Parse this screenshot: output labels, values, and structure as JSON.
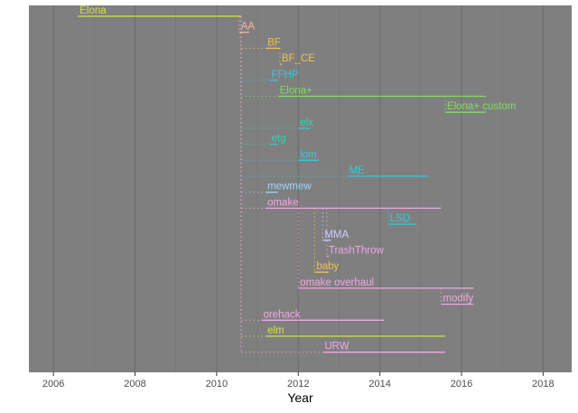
{
  "chart_data": {
    "type": "timeline",
    "xlabel": "Year",
    "xlim": [
      2005.4,
      2018.7
    ],
    "x_ticks": [
      2006,
      2008,
      2010,
      2012,
      2014,
      2016,
      2018
    ],
    "x_tick_labels": [
      "2006",
      "2008",
      "2010",
      "2012",
      "2014",
      "2016",
      "2018"
    ],
    "grid": true,
    "panel_background": "#7f7f7f",
    "series": [
      {
        "name": "Elona",
        "start": 2006.6,
        "end": 2010.6,
        "parent": null,
        "color": "#d4e34a"
      },
      {
        "name": "AA",
        "start": 2010.55,
        "end": 2010.8,
        "parent": "Elona",
        "color": "#fbb4a0"
      },
      {
        "name": "BF",
        "start": 2011.2,
        "end": 2011.55,
        "parent": "Elona",
        "color": "#f2c14e"
      },
      {
        "name": "BF_CE",
        "start": 2011.55,
        "end": 2011.6,
        "parent": "BF",
        "color": "#f2c14e"
      },
      {
        "name": "FFHP",
        "start": 2011.3,
        "end": 2011.5,
        "parent": "Elona",
        "color": "#35c8e0"
      },
      {
        "name": "Elona+",
        "start": 2011.5,
        "end": 2016.6,
        "parent": "Elona",
        "color": "#7be05a"
      },
      {
        "name": "Elona+ custom",
        "start": 2015.6,
        "end": 2016.6,
        "parent": "Elona+",
        "color": "#7be05a"
      },
      {
        "name": "elx",
        "start": 2012.0,
        "end": 2012.3,
        "parent": "Elona",
        "color": "#2ed6b8"
      },
      {
        "name": "etg",
        "start": 2011.3,
        "end": 2011.5,
        "parent": "Elona",
        "color": "#2ed6b8"
      },
      {
        "name": "lom",
        "start": 2012.0,
        "end": 2012.5,
        "parent": "Elona",
        "color": "#35c8e0"
      },
      {
        "name": "ME",
        "start": 2013.2,
        "end": 2015.2,
        "parent": "Elona",
        "color": "#35c8e0"
      },
      {
        "name": "mewmew",
        "start": 2011.2,
        "end": 2011.5,
        "parent": "Elona",
        "color": "#9ad8ff"
      },
      {
        "name": "omake",
        "start": 2011.2,
        "end": 2015.5,
        "parent": "Elona",
        "color": "#f4a6e8"
      },
      {
        "name": "LSD",
        "start": 2014.2,
        "end": 2014.9,
        "parent": "omake",
        "color": "#35c8e0"
      },
      {
        "name": "MMA",
        "start": 2012.6,
        "end": 2012.8,
        "parent": "omake",
        "color": "#c8d0ff"
      },
      {
        "name": "TrashThrow",
        "start": 2012.7,
        "end": 2012.75,
        "parent": "omake",
        "color": "#f4a6e8"
      },
      {
        "name": "baby",
        "start": 2012.4,
        "end": 2012.75,
        "parent": "omake",
        "color": "#f2c14e"
      },
      {
        "name": "omake overhaul",
        "start": 2012.0,
        "end": 2016.3,
        "parent": "omake",
        "color": "#f4a6e8"
      },
      {
        "name": "modify",
        "start": 2015.5,
        "end": 2016.3,
        "parent": "omake overhaul",
        "color": "#f4a6e8"
      },
      {
        "name": "orehack",
        "start": 2011.1,
        "end": 2014.1,
        "parent": "Elona",
        "color": "#f4a6e8"
      },
      {
        "name": "elm",
        "start": 2011.2,
        "end": 2015.6,
        "parent": "Elona",
        "color": "#d4e34a"
      },
      {
        "name": "URW",
        "start": 2012.6,
        "end": 2015.6,
        "parent": "Elona",
        "color": "#f4a6e8"
      }
    ]
  }
}
